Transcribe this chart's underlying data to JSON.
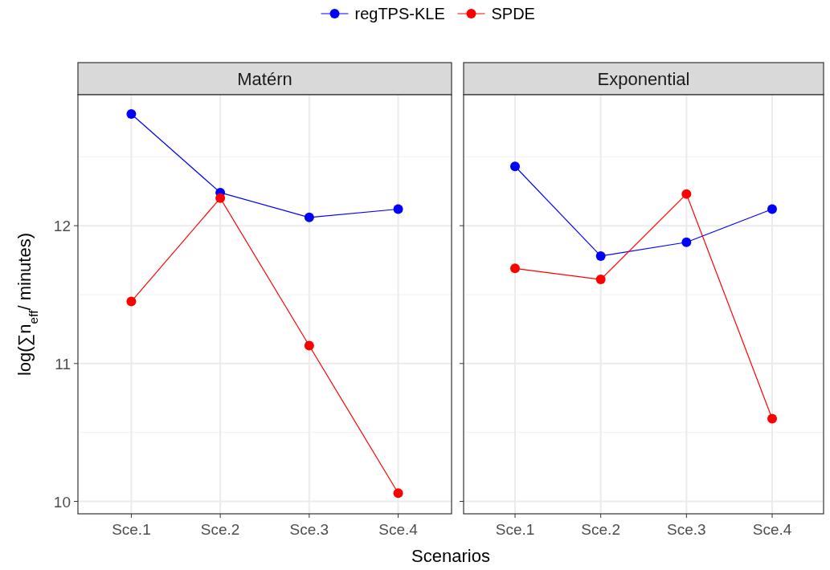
{
  "chart_data": [
    {
      "type": "line",
      "title": "Matérn",
      "xlabel": "Scenarios",
      "ylabel": "log(∑n$_{eff}$/ minutes)",
      "categories": [
        "Sce.1",
        "Sce.2",
        "Sce.3",
        "Sce.4"
      ],
      "ylim": [
        9.91,
        12.95
      ],
      "yticks": [
        10,
        11,
        12
      ],
      "grid": true,
      "legend": "top",
      "marker": "circle",
      "series": [
        {
          "name": "regTPS-KLE",
          "color": "#0000ff",
          "values": [
            12.81,
            12.24,
            12.06,
            12.12
          ]
        },
        {
          "name": "SPDE",
          "color": "#ff0000",
          "values": [
            11.45,
            12.2,
            11.13,
            10.06
          ]
        }
      ]
    },
    {
      "type": "line",
      "title": "Exponential",
      "categories": [
        "Sce.1",
        "Sce.2",
        "Sce.3",
        "Sce.4"
      ],
      "ylim": [
        9.91,
        12.95
      ],
      "yticks": [
        10,
        11,
        12
      ],
      "tick_labels": "x",
      "grid": true,
      "marker": "circle",
      "series": [
        {
          "color": "#0000ff",
          "values": [
            12.43,
            11.78,
            11.88,
            12.12
          ]
        },
        {
          "color": "#ff0000",
          "values": [
            11.69,
            11.61,
            12.23,
            10.6
          ]
        }
      ]
    }
  ]
}
